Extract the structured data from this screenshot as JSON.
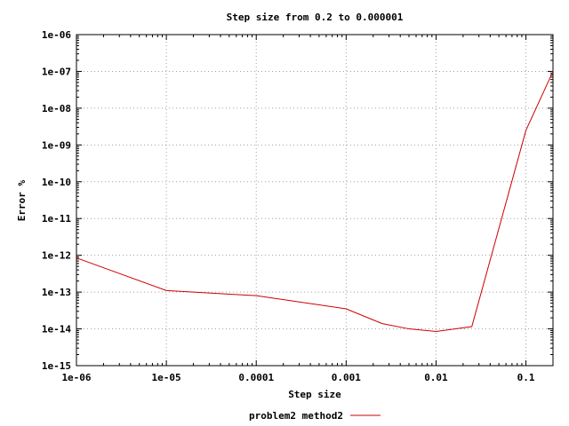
{
  "chart_data": {
    "type": "line",
    "title": "Step size from 0.2 to 0.000001",
    "xlabel": "Step size",
    "ylabel": "Error %",
    "x_scale": "log",
    "y_scale": "log",
    "xlim": [
      1e-06,
      0.2
    ],
    "ylim": [
      1e-15,
      1e-06
    ],
    "x_ticks": [
      {
        "value": 1e-06,
        "label": "1e-06"
      },
      {
        "value": 1e-05,
        "label": "1e-05"
      },
      {
        "value": 0.0001,
        "label": "0.0001"
      },
      {
        "value": 0.001,
        "label": "0.001"
      },
      {
        "value": 0.01,
        "label": "0.01"
      },
      {
        "value": 0.1,
        "label": "0.1"
      }
    ],
    "y_ticks": [
      {
        "value": 1e-06,
        "label": "1e-06"
      },
      {
        "value": 1e-07,
        "label": "1e-07"
      },
      {
        "value": 1e-08,
        "label": "1e-08"
      },
      {
        "value": 1e-09,
        "label": "1e-09"
      },
      {
        "value": 1e-10,
        "label": "1e-10"
      },
      {
        "value": 1e-11,
        "label": "1e-11"
      },
      {
        "value": 1e-12,
        "label": "1e-12"
      },
      {
        "value": 1e-13,
        "label": "1e-13"
      },
      {
        "value": 1e-14,
        "label": "1e-14"
      },
      {
        "value": 1e-15,
        "label": "1e-15"
      }
    ],
    "grid": true,
    "legend_position": "bottom-center",
    "series": [
      {
        "name": "problem2 method2",
        "color": "#cc0000",
        "x": [
          1e-06,
          1e-05,
          0.0001,
          0.001,
          0.0025,
          0.005,
          0.01,
          0.025,
          0.1,
          0.2
        ],
        "y": [
          8.5e-13,
          1.1e-13,
          8e-14,
          3.5e-14,
          1.4e-14,
          1e-14,
          8.5e-15,
          1.15e-14,
          2.5e-09,
          1e-07
        ]
      }
    ]
  }
}
